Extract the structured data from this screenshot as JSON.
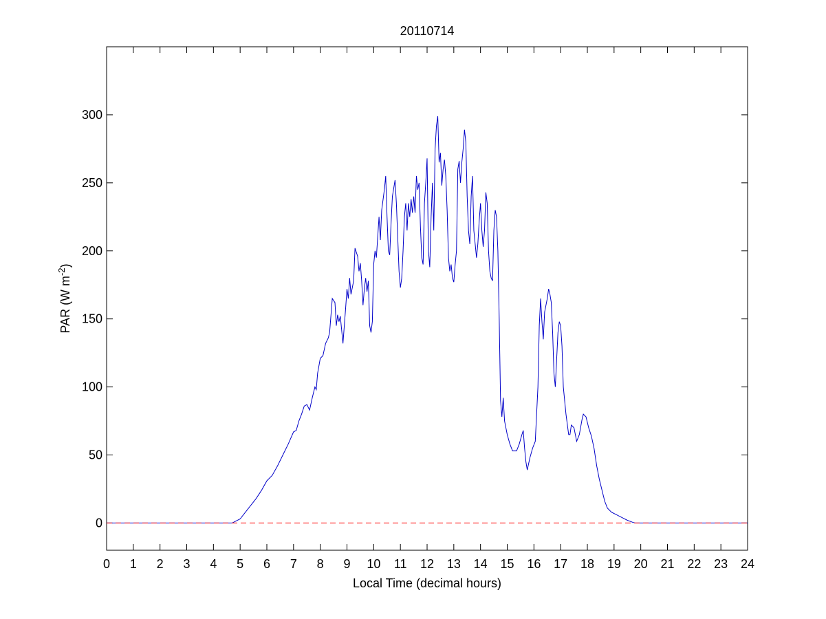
{
  "chart_data": {
    "type": "line",
    "title": "20110714",
    "xlabel": "Local Time (decimal hours)",
    "ylabel": {
      "text": "PAR (W m",
      "sup": "-2",
      "end": ")"
    },
    "xlim": [
      0,
      24
    ],
    "ylim": [
      -20,
      350
    ],
    "xticks": [
      0,
      1,
      2,
      3,
      4,
      5,
      6,
      7,
      8,
      9,
      10,
      11,
      12,
      13,
      14,
      15,
      16,
      17,
      18,
      19,
      20,
      21,
      22,
      23,
      24
    ],
    "yticks": [
      0,
      50,
      100,
      150,
      200,
      250,
      300
    ],
    "reference_line": {
      "y": 0,
      "color": "#ff0000",
      "style": "dashed"
    },
    "series": [
      {
        "color": "#0000c8",
        "x": [
          0,
          4.7,
          4.8,
          5.0,
          5.2,
          5.4,
          5.6,
          5.8,
          6.0,
          6.2,
          6.4,
          6.6,
          6.8,
          7.0,
          7.1,
          7.2,
          7.3,
          7.4,
          7.5,
          7.6,
          7.7,
          7.8,
          7.85,
          7.9,
          8.0,
          8.1,
          8.2,
          8.3,
          8.35,
          8.45,
          8.55,
          8.6,
          8.65,
          8.7,
          8.75,
          8.85,
          8.9,
          8.95,
          9.0,
          9.05,
          9.1,
          9.15,
          9.25,
          9.3,
          9.4,
          9.45,
          9.5,
          9.55,
          9.6,
          9.65,
          9.7,
          9.75,
          9.8,
          9.85,
          9.9,
          9.95,
          10.0,
          10.05,
          10.1,
          10.15,
          10.2,
          10.25,
          10.3,
          10.4,
          10.45,
          10.5,
          10.55,
          10.6,
          10.65,
          10.7,
          10.8,
          10.85,
          10.9,
          10.95,
          11.0,
          11.05,
          11.1,
          11.15,
          11.2,
          11.25,
          11.3,
          11.35,
          11.4,
          11.45,
          11.5,
          11.55,
          11.6,
          11.65,
          11.7,
          11.75,
          11.8,
          11.85,
          11.9,
          11.95,
          12.0,
          12.05,
          12.1,
          12.15,
          12.2,
          12.25,
          12.3,
          12.35,
          12.4,
          12.45,
          12.5,
          12.55,
          12.6,
          12.65,
          12.7,
          12.75,
          12.8,
          12.85,
          12.9,
          12.95,
          13.0,
          13.05,
          13.1,
          13.15,
          13.2,
          13.25,
          13.3,
          13.35,
          13.4,
          13.45,
          13.5,
          13.55,
          13.6,
          13.65,
          13.7,
          13.75,
          13.8,
          13.85,
          13.9,
          13.95,
          14.0,
          14.05,
          14.1,
          14.15,
          14.2,
          14.25,
          14.3,
          14.35,
          14.4,
          14.45,
          14.5,
          14.55,
          14.6,
          14.65,
          14.7,
          14.75,
          14.8,
          14.85,
          14.9,
          15.0,
          15.1,
          15.2,
          15.35,
          15.45,
          15.55,
          15.6,
          15.65,
          15.7,
          15.75,
          15.85,
          15.95,
          16.05,
          16.15,
          16.2,
          16.25,
          16.3,
          16.35,
          16.4,
          16.45,
          16.5,
          16.55,
          16.6,
          16.65,
          16.7,
          16.75,
          16.8,
          16.85,
          16.9,
          16.95,
          17.0,
          17.05,
          17.1,
          17.2,
          17.3,
          17.35,
          17.4,
          17.5,
          17.6,
          17.7,
          17.8,
          17.85,
          17.95,
          18.05,
          18.15,
          18.25,
          18.35,
          18.45,
          18.55,
          18.65,
          18.75,
          18.9,
          19.1,
          19.3,
          19.5,
          19.7,
          19.8,
          24
        ],
        "values": [
          0,
          0,
          1,
          3,
          8,
          13,
          18,
          24,
          31,
          35,
          42,
          50,
          58,
          67,
          68,
          75,
          80,
          86,
          87,
          83,
          92,
          100,
          98,
          110,
          121,
          123,
          132,
          136,
          140,
          165,
          162,
          145,
          153,
          148,
          152,
          132,
          145,
          158,
          172,
          165,
          180,
          168,
          178,
          202,
          196,
          185,
          191,
          178,
          160,
          172,
          180,
          170,
          178,
          145,
          140,
          148,
          190,
          200,
          195,
          210,
          225,
          208,
          230,
          245,
          255,
          225,
          200,
          197,
          220,
          240,
          252,
          235,
          210,
          185,
          173,
          180,
          200,
          225,
          235,
          215,
          235,
          225,
          238,
          228,
          240,
          228,
          255,
          245,
          250,
          218,
          195,
          190,
          235,
          250,
          268,
          200,
          188,
          225,
          250,
          215,
          275,
          292,
          299,
          265,
          272,
          248,
          260,
          267,
          255,
          230,
          195,
          185,
          190,
          180,
          177,
          190,
          200,
          260,
          266,
          250,
          265,
          275,
          289,
          280,
          240,
          215,
          205,
          240,
          255,
          215,
          205,
          195,
          205,
          222,
          235,
          215,
          203,
          215,
          243,
          235,
          200,
          185,
          180,
          178,
          215,
          230,
          225,
          200,
          150,
          90,
          78,
          92,
          75,
          65,
          58,
          53,
          53,
          58,
          65,
          68,
          55,
          45,
          39,
          48,
          55,
          60,
          100,
          145,
          165,
          148,
          135,
          155,
          160,
          165,
          172,
          168,
          162,
          140,
          110,
          100,
          120,
          140,
          148,
          145,
          130,
          100,
          80,
          65,
          65,
          72,
          70,
          60,
          65,
          76,
          80,
          78,
          70,
          64,
          55,
          42,
          32,
          24,
          16,
          11,
          8,
          6,
          4,
          2,
          0.5,
          0,
          0
        ]
      }
    ]
  }
}
